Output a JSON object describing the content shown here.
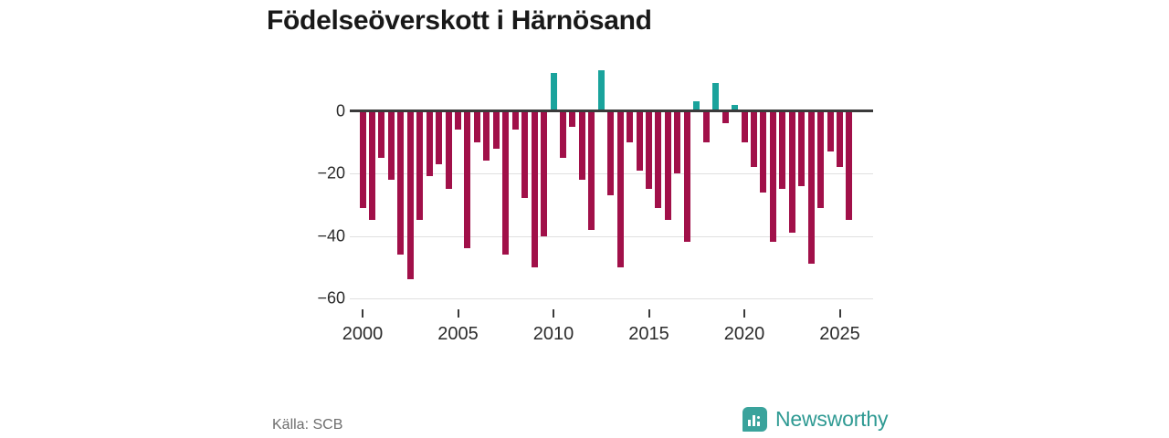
{
  "title": "Födelseöverskott i Härnösand",
  "source": {
    "label": "Källa: SCB"
  },
  "branding": {
    "name": "Newsworthy",
    "icon": "newsworthy-bar-chart-pin-icon",
    "color": "#2F9A93"
  },
  "colors": {
    "negative_bar": "#A11049",
    "positive_bar": "#1AA39C",
    "axis_line": "#3A3A3A",
    "gridline": "#E0E0E0",
    "tick_text": "#2B2B2B",
    "source_text": "#6E6E6E",
    "background": "#FFFFFF"
  },
  "chart_data": {
    "type": "bar",
    "title": "Födelseöverskott i Härnösand",
    "x_unit": "half-year (H1/H2), 2000–2025",
    "ylabel": "",
    "xlabel": "",
    "ylim": [
      -60,
      15
    ],
    "grid": "horizontal",
    "legend": "none",
    "y_ticks": [
      {
        "value": 0,
        "label": "0"
      },
      {
        "value": -20,
        "label": "−20"
      },
      {
        "value": -40,
        "label": "−40"
      },
      {
        "value": -60,
        "label": "−60"
      }
    ],
    "x_ticks": [
      {
        "year": 2000,
        "label": "2000"
      },
      {
        "year": 2005,
        "label": "2005"
      },
      {
        "year": 2010,
        "label": "2010"
      },
      {
        "year": 2015,
        "label": "2015"
      },
      {
        "year": 2020,
        "label": "2020"
      },
      {
        "year": 2025,
        "label": "2025"
      }
    ],
    "points": [
      {
        "period": "2000 H1",
        "value": -31
      },
      {
        "period": "2000 H2",
        "value": -35
      },
      {
        "period": "2001 H1",
        "value": -15
      },
      {
        "period": "2001 H2",
        "value": -22
      },
      {
        "period": "2002 H1",
        "value": -46
      },
      {
        "period": "2002 H2",
        "value": -54
      },
      {
        "period": "2003 H1",
        "value": -35
      },
      {
        "period": "2003 H2",
        "value": -21
      },
      {
        "period": "2004 H1",
        "value": -17
      },
      {
        "period": "2004 H2",
        "value": -25
      },
      {
        "period": "2005 H1",
        "value": -6
      },
      {
        "period": "2005 H2",
        "value": -44
      },
      {
        "period": "2006 H1",
        "value": -10
      },
      {
        "period": "2006 H2",
        "value": -16
      },
      {
        "period": "2007 H1",
        "value": -12
      },
      {
        "period": "2007 H2",
        "value": -46
      },
      {
        "period": "2008 H1",
        "value": -6
      },
      {
        "period": "2008 H2",
        "value": -28
      },
      {
        "period": "2009 H1",
        "value": -50
      },
      {
        "period": "2009 H2",
        "value": -40
      },
      {
        "period": "2010 H1",
        "value": 12
      },
      {
        "period": "2010 H2",
        "value": -15
      },
      {
        "period": "2011 H1",
        "value": -5
      },
      {
        "period": "2011 H2",
        "value": -22
      },
      {
        "period": "2012 H1",
        "value": -38
      },
      {
        "period": "2012 H2",
        "value": 13
      },
      {
        "period": "2013 H1",
        "value": -27
      },
      {
        "period": "2013 H2",
        "value": -50
      },
      {
        "period": "2014 H1",
        "value": -10
      },
      {
        "period": "2014 H2",
        "value": -19
      },
      {
        "period": "2015 H1",
        "value": -25
      },
      {
        "period": "2015 H2",
        "value": -31
      },
      {
        "period": "2016 H1",
        "value": -35
      },
      {
        "period": "2016 H2",
        "value": -20
      },
      {
        "period": "2017 H1",
        "value": -42
      },
      {
        "period": "2017 H2",
        "value": 3
      },
      {
        "period": "2018 H1",
        "value": -10
      },
      {
        "period": "2018 H2",
        "value": 9
      },
      {
        "period": "2019 H1",
        "value": -4
      },
      {
        "period": "2019 H2",
        "value": 2
      },
      {
        "period": "2020 H1",
        "value": -10
      },
      {
        "period": "2020 H2",
        "value": -18
      },
      {
        "period": "2021 H1",
        "value": -26
      },
      {
        "period": "2021 H2",
        "value": -42
      },
      {
        "period": "2022 H1",
        "value": -25
      },
      {
        "period": "2022 H2",
        "value": -39
      },
      {
        "period": "2023 H1",
        "value": -24
      },
      {
        "period": "2023 H2",
        "value": -49
      },
      {
        "period": "2024 H1",
        "value": -31
      },
      {
        "period": "2024 H2",
        "value": -13
      },
      {
        "period": "2025 H1",
        "value": -18
      },
      {
        "period": "2025 H2",
        "value": -35
      }
    ]
  }
}
